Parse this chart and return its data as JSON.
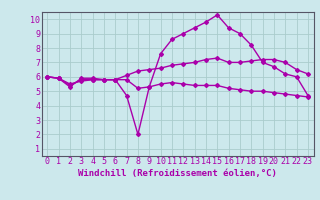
{
  "background_color": "#cce8ec",
  "grid_color": "#aacccc",
  "line_color": "#aa00aa",
  "marker": "D",
  "marker_size": 2,
  "line_width": 1.0,
  "xlabel": "Windchill (Refroidissement éolien,°C)",
  "xlabel_fontsize": 6.5,
  "xlim": [
    -0.5,
    23.5
  ],
  "ylim": [
    0.5,
    10.5
  ],
  "xticks": [
    0,
    1,
    2,
    3,
    4,
    5,
    6,
    7,
    8,
    9,
    10,
    11,
    12,
    13,
    14,
    15,
    16,
    17,
    18,
    19,
    20,
    21,
    22,
    23
  ],
  "yticks": [
    1,
    2,
    3,
    4,
    5,
    6,
    7,
    8,
    9,
    10
  ],
  "tick_fontsize": 6,
  "line1_x": [
    0,
    1,
    2,
    3,
    4,
    5,
    6,
    7,
    8,
    9,
    10,
    11,
    12,
    13,
    14,
    15,
    16,
    17,
    18,
    19,
    20,
    21,
    22,
    23
  ],
  "line1_y": [
    6.0,
    5.9,
    5.3,
    5.9,
    5.9,
    5.8,
    5.8,
    4.7,
    2.0,
    5.3,
    7.6,
    8.6,
    9.0,
    9.4,
    9.8,
    10.3,
    9.4,
    9.0,
    8.2,
    7.0,
    6.7,
    6.2,
    6.0,
    4.7
  ],
  "line2_x": [
    0,
    1,
    2,
    3,
    4,
    5,
    6,
    7,
    8,
    9,
    10,
    11,
    12,
    13,
    14,
    15,
    16,
    17,
    18,
    19,
    20,
    21,
    22,
    23
  ],
  "line2_y": [
    6.0,
    5.9,
    5.5,
    5.7,
    5.8,
    5.8,
    5.8,
    5.8,
    5.2,
    5.3,
    5.5,
    5.6,
    5.5,
    5.4,
    5.4,
    5.4,
    5.2,
    5.1,
    5.0,
    5.0,
    4.9,
    4.8,
    4.7,
    4.6
  ],
  "line3_x": [
    0,
    1,
    2,
    3,
    4,
    5,
    6,
    7,
    8,
    9,
    10,
    11,
    12,
    13,
    14,
    15,
    16,
    17,
    18,
    19,
    20,
    21,
    22,
    23
  ],
  "line3_y": [
    6.0,
    5.9,
    5.4,
    5.8,
    5.8,
    5.8,
    5.8,
    6.1,
    6.4,
    6.5,
    6.6,
    6.8,
    6.9,
    7.0,
    7.2,
    7.3,
    7.0,
    7.0,
    7.1,
    7.2,
    7.2,
    7.0,
    6.5,
    6.2
  ]
}
